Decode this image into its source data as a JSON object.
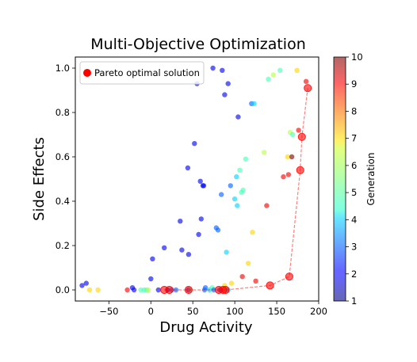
{
  "chart_data": {
    "type": "scatter",
    "title": "Multi-Objective Optimization",
    "xlabel": "Drug Activity",
    "ylabel": "Side Effects",
    "xlim": [
      -90,
      200
    ],
    "ylim": [
      -0.05,
      1.05
    ],
    "xticks": [
      -50,
      0,
      50,
      100,
      150,
      200
    ],
    "yticks": [
      0.0,
      0.2,
      0.4,
      0.6,
      0.8,
      1.0
    ],
    "xtick_labels": [
      "−50",
      "0",
      "50",
      "100",
      "150",
      "200"
    ],
    "ytick_labels": [
      "0.0",
      "0.2",
      "0.4",
      "0.6",
      "0.8",
      "1.0"
    ],
    "grid": false,
    "legend": {
      "entries": [
        "Pareto optimal solution"
      ],
      "placement": "top-left"
    },
    "colorbar": {
      "label": "Generation",
      "range": [
        1,
        10
      ],
      "ticks": [
        1,
        2,
        3,
        4,
        5,
        6,
        7,
        8,
        9,
        10
      ],
      "tick_labels": [
        "1",
        "2",
        "3",
        "4",
        "5",
        "6",
        "7",
        "8",
        "9",
        "10"
      ],
      "colormap": "jet",
      "alpha": 0.6
    },
    "series": [
      {
        "kind": "population",
        "points": [
          [
            -82,
            0.02,
            2
          ],
          [
            -77,
            0.03,
            2
          ],
          [
            -73,
            0.0,
            7
          ],
          [
            -63,
            0.0,
            7
          ],
          [
            -28,
            0.0,
            9
          ],
          [
            -22,
            0.01,
            2
          ],
          [
            -20,
            0.0,
            2
          ],
          [
            -12,
            0.0,
            5
          ],
          [
            -8,
            0.0,
            5
          ],
          [
            -5,
            0.0,
            5
          ],
          [
            -3,
            0.0,
            6
          ],
          [
            0,
            0.05,
            2
          ],
          [
            2,
            0.14,
            2
          ],
          [
            9,
            0.0,
            2
          ],
          [
            16,
            0.19,
            2
          ],
          [
            20,
            0.0,
            2
          ],
          [
            25,
            0.0,
            3
          ],
          [
            30,
            0.0,
            3
          ],
          [
            35,
            0.31,
            2
          ],
          [
            37,
            0.18,
            2
          ],
          [
            44,
            0.55,
            2
          ],
          [
            45,
            0.16,
            2
          ],
          [
            45,
            0.0,
            2
          ],
          [
            47,
            0.0,
            5
          ],
          [
            52,
            0.66,
            2
          ],
          [
            55,
            0.93,
            2
          ],
          [
            57,
            0.25,
            2
          ],
          [
            59,
            0.49,
            2
          ],
          [
            60,
            0.32,
            2
          ],
          [
            62,
            0.47,
            2
          ],
          [
            63,
            0.47,
            2
          ],
          [
            64,
            0.0,
            3
          ],
          [
            65,
            0.01,
            3
          ],
          [
            70,
            0.0,
            4
          ],
          [
            73,
            0.01,
            5
          ],
          [
            74,
            1.0,
            2
          ],
          [
            75,
            0.0,
            3
          ],
          [
            78,
            0.28,
            3
          ],
          [
            80,
            0.27,
            3
          ],
          [
            82,
            0.0,
            3
          ],
          [
            84,
            0.43,
            3
          ],
          [
            85,
            0.99,
            2
          ],
          [
            88,
            0.88,
            2
          ],
          [
            88,
            0.02,
            7
          ],
          [
            90,
            0.17,
            4
          ],
          [
            90,
            0.0,
            5
          ],
          [
            92,
            0.93,
            2
          ],
          [
            92,
            0.0,
            4
          ],
          [
            95,
            0.47,
            3
          ],
          [
            96,
            0.03,
            7
          ],
          [
            100,
            0.41,
            4
          ],
          [
            102,
            0.51,
            4
          ],
          [
            103,
            0.38,
            4
          ],
          [
            104,
            0.78,
            2
          ],
          [
            106,
            0.54,
            5
          ],
          [
            108,
            0.44,
            5
          ],
          [
            109,
            0.06,
            9
          ],
          [
            110,
            0.45,
            5
          ],
          [
            113,
            0.59,
            5
          ],
          [
            116,
            0.12,
            7
          ],
          [
            120,
            0.84,
            3
          ],
          [
            121,
            0.26,
            7
          ],
          [
            123,
            0.84,
            4
          ],
          [
            125,
            0.04,
            9
          ],
          [
            135,
            0.62,
            6
          ],
          [
            138,
            0.38,
            9
          ],
          [
            140,
            0.95,
            5
          ],
          [
            146,
            0.97,
            6
          ],
          [
            154,
            0.99,
            5
          ],
          [
            158,
            0.51,
            9
          ],
          [
            163,
            0.6,
            7
          ],
          [
            164,
            0.52,
            9
          ],
          [
            166,
            0.71,
            6
          ],
          [
            168,
            0.6,
            10
          ],
          [
            169,
            0.7,
            5
          ],
          [
            174,
            0.99,
            7
          ],
          [
            176,
            0.72,
            9
          ],
          [
            185,
            0.94,
            9
          ]
        ]
      },
      {
        "name": "Pareto optimal solution",
        "kind": "pareto",
        "color": "#ff0000",
        "points": [
          [
            16,
            0.0
          ],
          [
            22,
            0.0
          ],
          [
            45,
            0.0
          ],
          [
            81,
            0.0
          ],
          [
            86,
            0.0
          ],
          [
            89,
            0.0
          ],
          [
            142,
            0.02
          ],
          [
            165,
            0.06
          ],
          [
            178,
            0.54
          ],
          [
            180,
            0.69
          ],
          [
            187,
            0.91
          ]
        ]
      }
    ]
  }
}
